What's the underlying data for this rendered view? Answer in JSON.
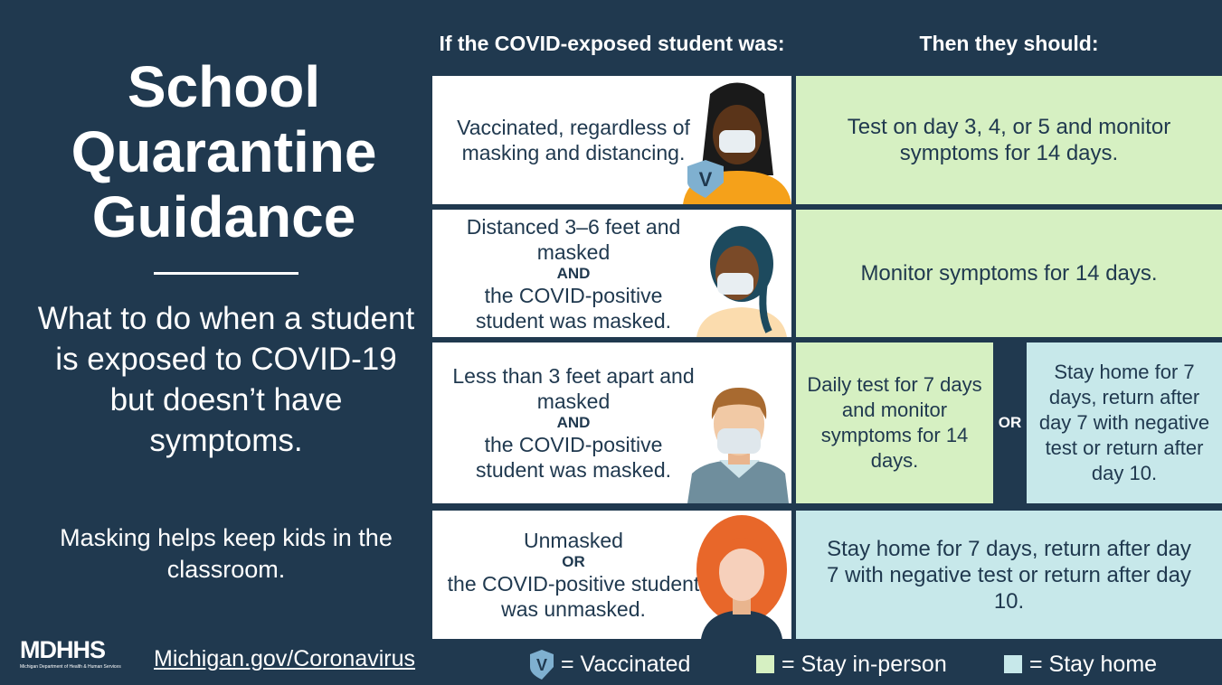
{
  "title_lines": [
    "School",
    "Quarantine",
    "Guidance"
  ],
  "subtitle": "What to do when a student is exposed to COVID-19 but doesn’t have symptoms.",
  "note": "Masking helps keep kids in the classroom.",
  "logo": {
    "name": "MDHHS",
    "full_name": "Michigan Department of Health & Human Services"
  },
  "url": "Michigan.gov/Coronavirus",
  "table": {
    "headers": [
      "If the COVID-exposed student was:",
      "Then they should:"
    ],
    "rows": [
      {
        "condition": [
          "Vaccinated, regardless of masking and distancing."
        ],
        "badge": "V",
        "actions": [
          "Test on day 3, 4, or 5 and monitor symptoms for 14 days."
        ]
      },
      {
        "condition": [
          "Distanced 3–6 feet and masked",
          "AND",
          "the COVID-positive student was masked."
        ],
        "actions": [
          "Monitor symptoms for 14 days."
        ]
      },
      {
        "condition": [
          "Less than 3 feet apart and masked",
          "AND",
          "the COVID-positive student was masked."
        ],
        "actions": [
          "Daily test for 7 days and monitor symptoms for 14 days.",
          "OR",
          "Stay home for 7 days, return after day 7 with negative test or return after day 10."
        ]
      },
      {
        "condition": [
          "Unmasked",
          "OR",
          "the COVID-positive student was unmasked."
        ],
        "actions": [
          "Stay home for 7 days, return after day 7 with negative test or return after day 10."
        ]
      }
    ]
  },
  "legend": [
    {
      "symbol": "V",
      "label": "= Vaccinated"
    },
    {
      "label": "= Stay in-person"
    },
    {
      "label": "= Stay home"
    }
  ]
}
